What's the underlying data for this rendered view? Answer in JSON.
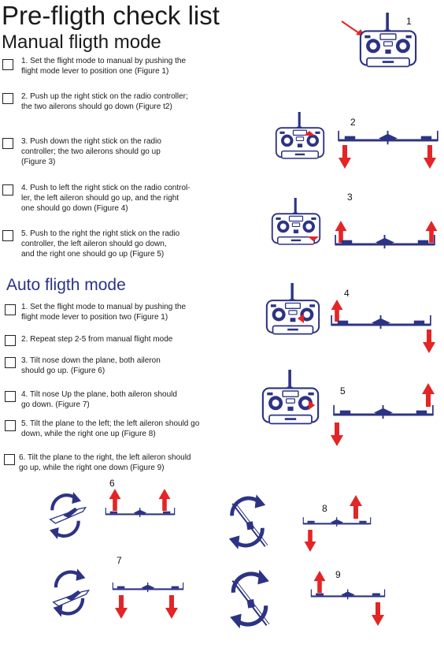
{
  "page": {
    "title": "Pre-fligth check list",
    "manual_heading": "Manual fligth mode",
    "auto_heading": "Auto fligth mode"
  },
  "manual_steps": [
    {
      "lines": [
        "1. Set the flight mode to manual by pushing the",
        "flight mode lever to position one (Figure 1)"
      ]
    },
    {
      "lines": [
        "2. Push up the right stick on the radio controller;",
        "the two ailerons should  go down (Figure t2)"
      ]
    },
    {
      "lines": [
        "3. Push down the right stick on the radio",
        "controller; the two ailerons should  go up",
        "(Figure 3)"
      ]
    },
    {
      "lines": [
        "4. Push to left the right stick on the radio control-",
        "ler, the left aileron should go up, and the right",
        "one should go down (Figure 4)"
      ]
    },
    {
      "lines": [
        "5. Push to the right the right stick on the radio",
        "controller, the left aileron should go down,",
        "and the right one should go up (Figure 5)"
      ]
    }
  ],
  "auto_steps": [
    {
      "lines": [
        "1. Set the flight mode to manual by pushing the",
        "flight mode lever to position two (Figure 1)"
      ]
    },
    {
      "lines": [
        "2. Repeat step 2-5 from manual flight mode"
      ]
    },
    {
      "lines": [
        "3. Tilt nose down the plane, both aileron",
        "should go up. (Figure 6)"
      ]
    },
    {
      "lines": [
        "4. Tilt nose Up the plane, both aileron should",
        "go down. (Figure 7)"
      ]
    },
    {
      "lines": [
        "5. Tilt  the plane to the left; the left aileron should go",
        "down, while the right one up (Figure 8)"
      ]
    },
    {
      "lines": [
        "6. Tilt  the plane to the right,  the left aileron should",
        "go up, while the right one down (Figure 9)"
      ]
    }
  ],
  "figure_labels": [
    "1",
    "2",
    "3",
    "4",
    "5",
    "6",
    "7",
    "8",
    "9"
  ],
  "colors": {
    "arrow_red": "#e32526",
    "outline_navy": "#2d3384",
    "text": "#1a1a1a"
  }
}
